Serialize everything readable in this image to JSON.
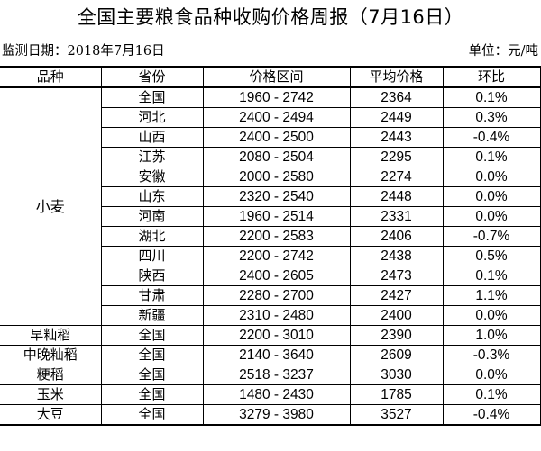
{
  "title": "全国主要粮食品种收购价格周报（7月16日）",
  "meta": {
    "date_label": "监测日期：2018年7月16日",
    "unit_label": "单位：元/吨"
  },
  "headers": {
    "category": "品种",
    "province": "省份",
    "range": "价格区间",
    "average": "平均价格",
    "change": "环比"
  },
  "groups": [
    {
      "category": "小麦",
      "rows": [
        {
          "province": "全国",
          "range": "1960 - 2742",
          "average": "2364",
          "change": "0.1%"
        },
        {
          "province": "河北",
          "range": "2400 - 2494",
          "average": "2449",
          "change": "0.3%"
        },
        {
          "province": "山西",
          "range": "2400 - 2500",
          "average": "2443",
          "change": "-0.4%"
        },
        {
          "province": "江苏",
          "range": "2080 - 2504",
          "average": "2295",
          "change": "0.1%"
        },
        {
          "province": "安徽",
          "range": "2000 - 2580",
          "average": "2274",
          "change": "0.0%"
        },
        {
          "province": "山东",
          "range": "2320 - 2540",
          "average": "2448",
          "change": "0.0%"
        },
        {
          "province": "河南",
          "range": "1960 - 2514",
          "average": "2331",
          "change": "0.0%"
        },
        {
          "province": "湖北",
          "range": "2200 - 2583",
          "average": "2406",
          "change": "-0.7%"
        },
        {
          "province": "四川",
          "range": "2200 - 2742",
          "average": "2438",
          "change": "0.5%"
        },
        {
          "province": "陕西",
          "range": "2400 - 2605",
          "average": "2473",
          "change": "0.1%"
        },
        {
          "province": "甘肃",
          "range": "2280 - 2700",
          "average": "2427",
          "change": "1.1%"
        },
        {
          "province": "新疆",
          "range": "2310 - 2480",
          "average": "2400",
          "change": "0.0%"
        }
      ]
    },
    {
      "category": "早籼稻",
      "rows": [
        {
          "province": "全国",
          "range": "2200 - 3010",
          "average": "2390",
          "change": "1.0%"
        }
      ]
    },
    {
      "category": "中晚籼稻",
      "rows": [
        {
          "province": "全国",
          "range": "2140 - 3640",
          "average": "2609",
          "change": "-0.3%"
        }
      ]
    },
    {
      "category": "粳稻",
      "rows": [
        {
          "province": "全国",
          "range": "2518 - 3237",
          "average": "3030",
          "change": "0.0%"
        }
      ]
    },
    {
      "category": "玉米",
      "rows": [
        {
          "province": "全国",
          "range": "1480 - 2430",
          "average": "1785",
          "change": "0.1%"
        }
      ]
    },
    {
      "category": "大豆",
      "rows": [
        {
          "province": "全国",
          "range": "3279 - 3980",
          "average": "3527",
          "change": "-0.4%"
        }
      ]
    }
  ]
}
